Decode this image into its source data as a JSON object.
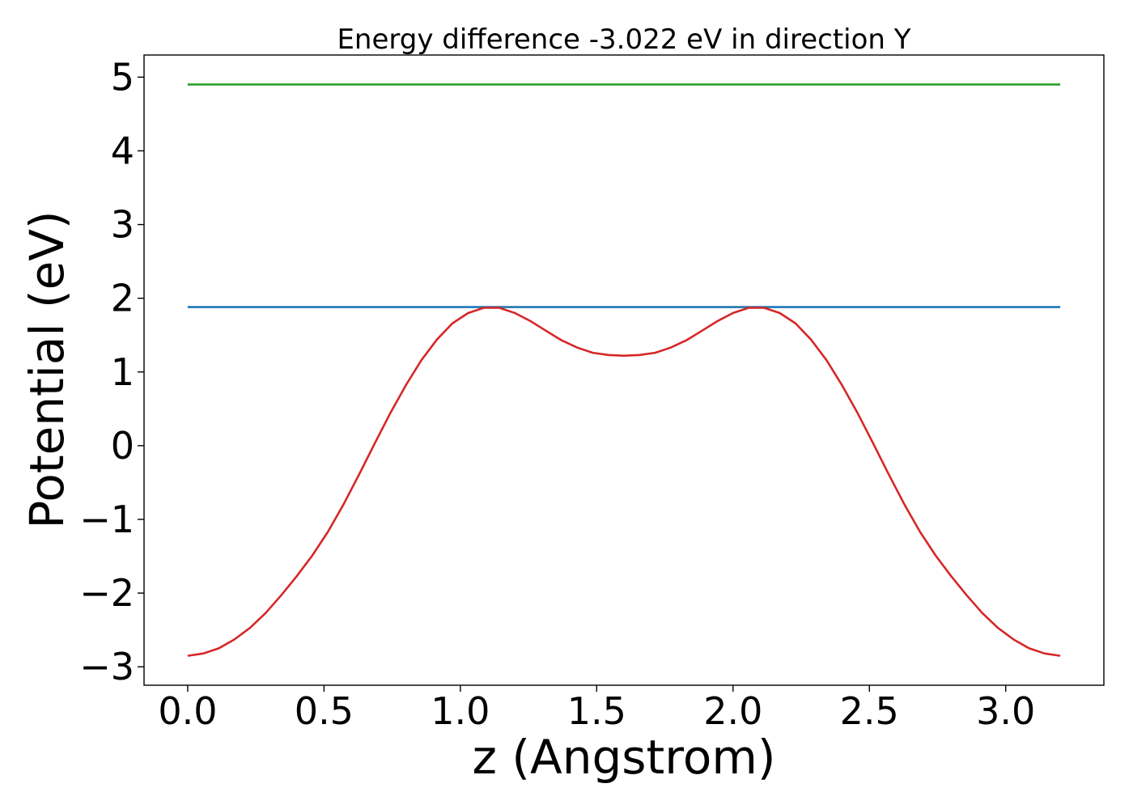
{
  "chart_data": {
    "type": "line",
    "title": "Energy difference -3.022 eV in direction Y",
    "xlabel": "z (Angstrom)",
    "ylabel": "Potential (eV)",
    "xlim": [
      -0.16,
      3.36
    ],
    "ylim": [
      -3.25,
      5.3
    ],
    "xticks": [
      0.0,
      0.5,
      1.0,
      1.5,
      2.0,
      2.5,
      3.0
    ],
    "xtick_labels": [
      "0.0",
      "0.5",
      "1.0",
      "1.5",
      "2.0",
      "2.5",
      "3.0"
    ],
    "yticks": [
      -3,
      -2,
      -1,
      0,
      1,
      2,
      3,
      4,
      5
    ],
    "ytick_labels": [
      "−3",
      "−2",
      "−1",
      "0",
      "1",
      "2",
      "3",
      "4",
      "5"
    ],
    "grid": false,
    "legend": "none",
    "series": [
      {
        "color": "#2ca02c",
        "x": [
          0.0,
          3.2
        ],
        "y": [
          4.9,
          4.9
        ]
      },
      {
        "color": "#1f77b4",
        "x": [
          0.0,
          3.2
        ],
        "y": [
          1.88,
          1.88
        ]
      },
      {
        "color": "#d62728",
        "x": [
          0.0,
          0.057,
          0.114,
          0.171,
          0.229,
          0.286,
          0.343,
          0.4,
          0.457,
          0.514,
          0.571,
          0.629,
          0.686,
          0.743,
          0.8,
          0.857,
          0.914,
          0.971,
          1.029,
          1.086,
          1.143,
          1.2,
          1.257,
          1.314,
          1.371,
          1.429,
          1.486,
          1.543,
          1.6,
          1.657,
          1.714,
          1.771,
          1.829,
          1.886,
          1.943,
          2.0,
          2.057,
          2.114,
          2.171,
          2.229,
          2.286,
          2.343,
          2.4,
          2.457,
          2.514,
          2.571,
          2.629,
          2.686,
          2.743,
          2.8,
          2.857,
          2.914,
          2.971,
          3.029,
          3.086,
          3.143,
          3.2
        ],
        "y": [
          -2.85,
          -2.82,
          -2.75,
          -2.63,
          -2.47,
          -2.27,
          -2.03,
          -1.77,
          -1.49,
          -1.17,
          -0.8,
          -0.39,
          0.03,
          0.44,
          0.82,
          1.16,
          1.44,
          1.66,
          1.8,
          1.87,
          1.87,
          1.8,
          1.69,
          1.56,
          1.43,
          1.33,
          1.26,
          1.23,
          1.22,
          1.23,
          1.26,
          1.33,
          1.43,
          1.56,
          1.69,
          1.8,
          1.87,
          1.87,
          1.8,
          1.66,
          1.44,
          1.16,
          0.82,
          0.44,
          0.03,
          -0.39,
          -0.8,
          -1.17,
          -1.49,
          -1.77,
          -2.03,
          -2.27,
          -2.47,
          -2.63,
          -2.75,
          -2.82,
          -2.85
        ]
      }
    ]
  }
}
